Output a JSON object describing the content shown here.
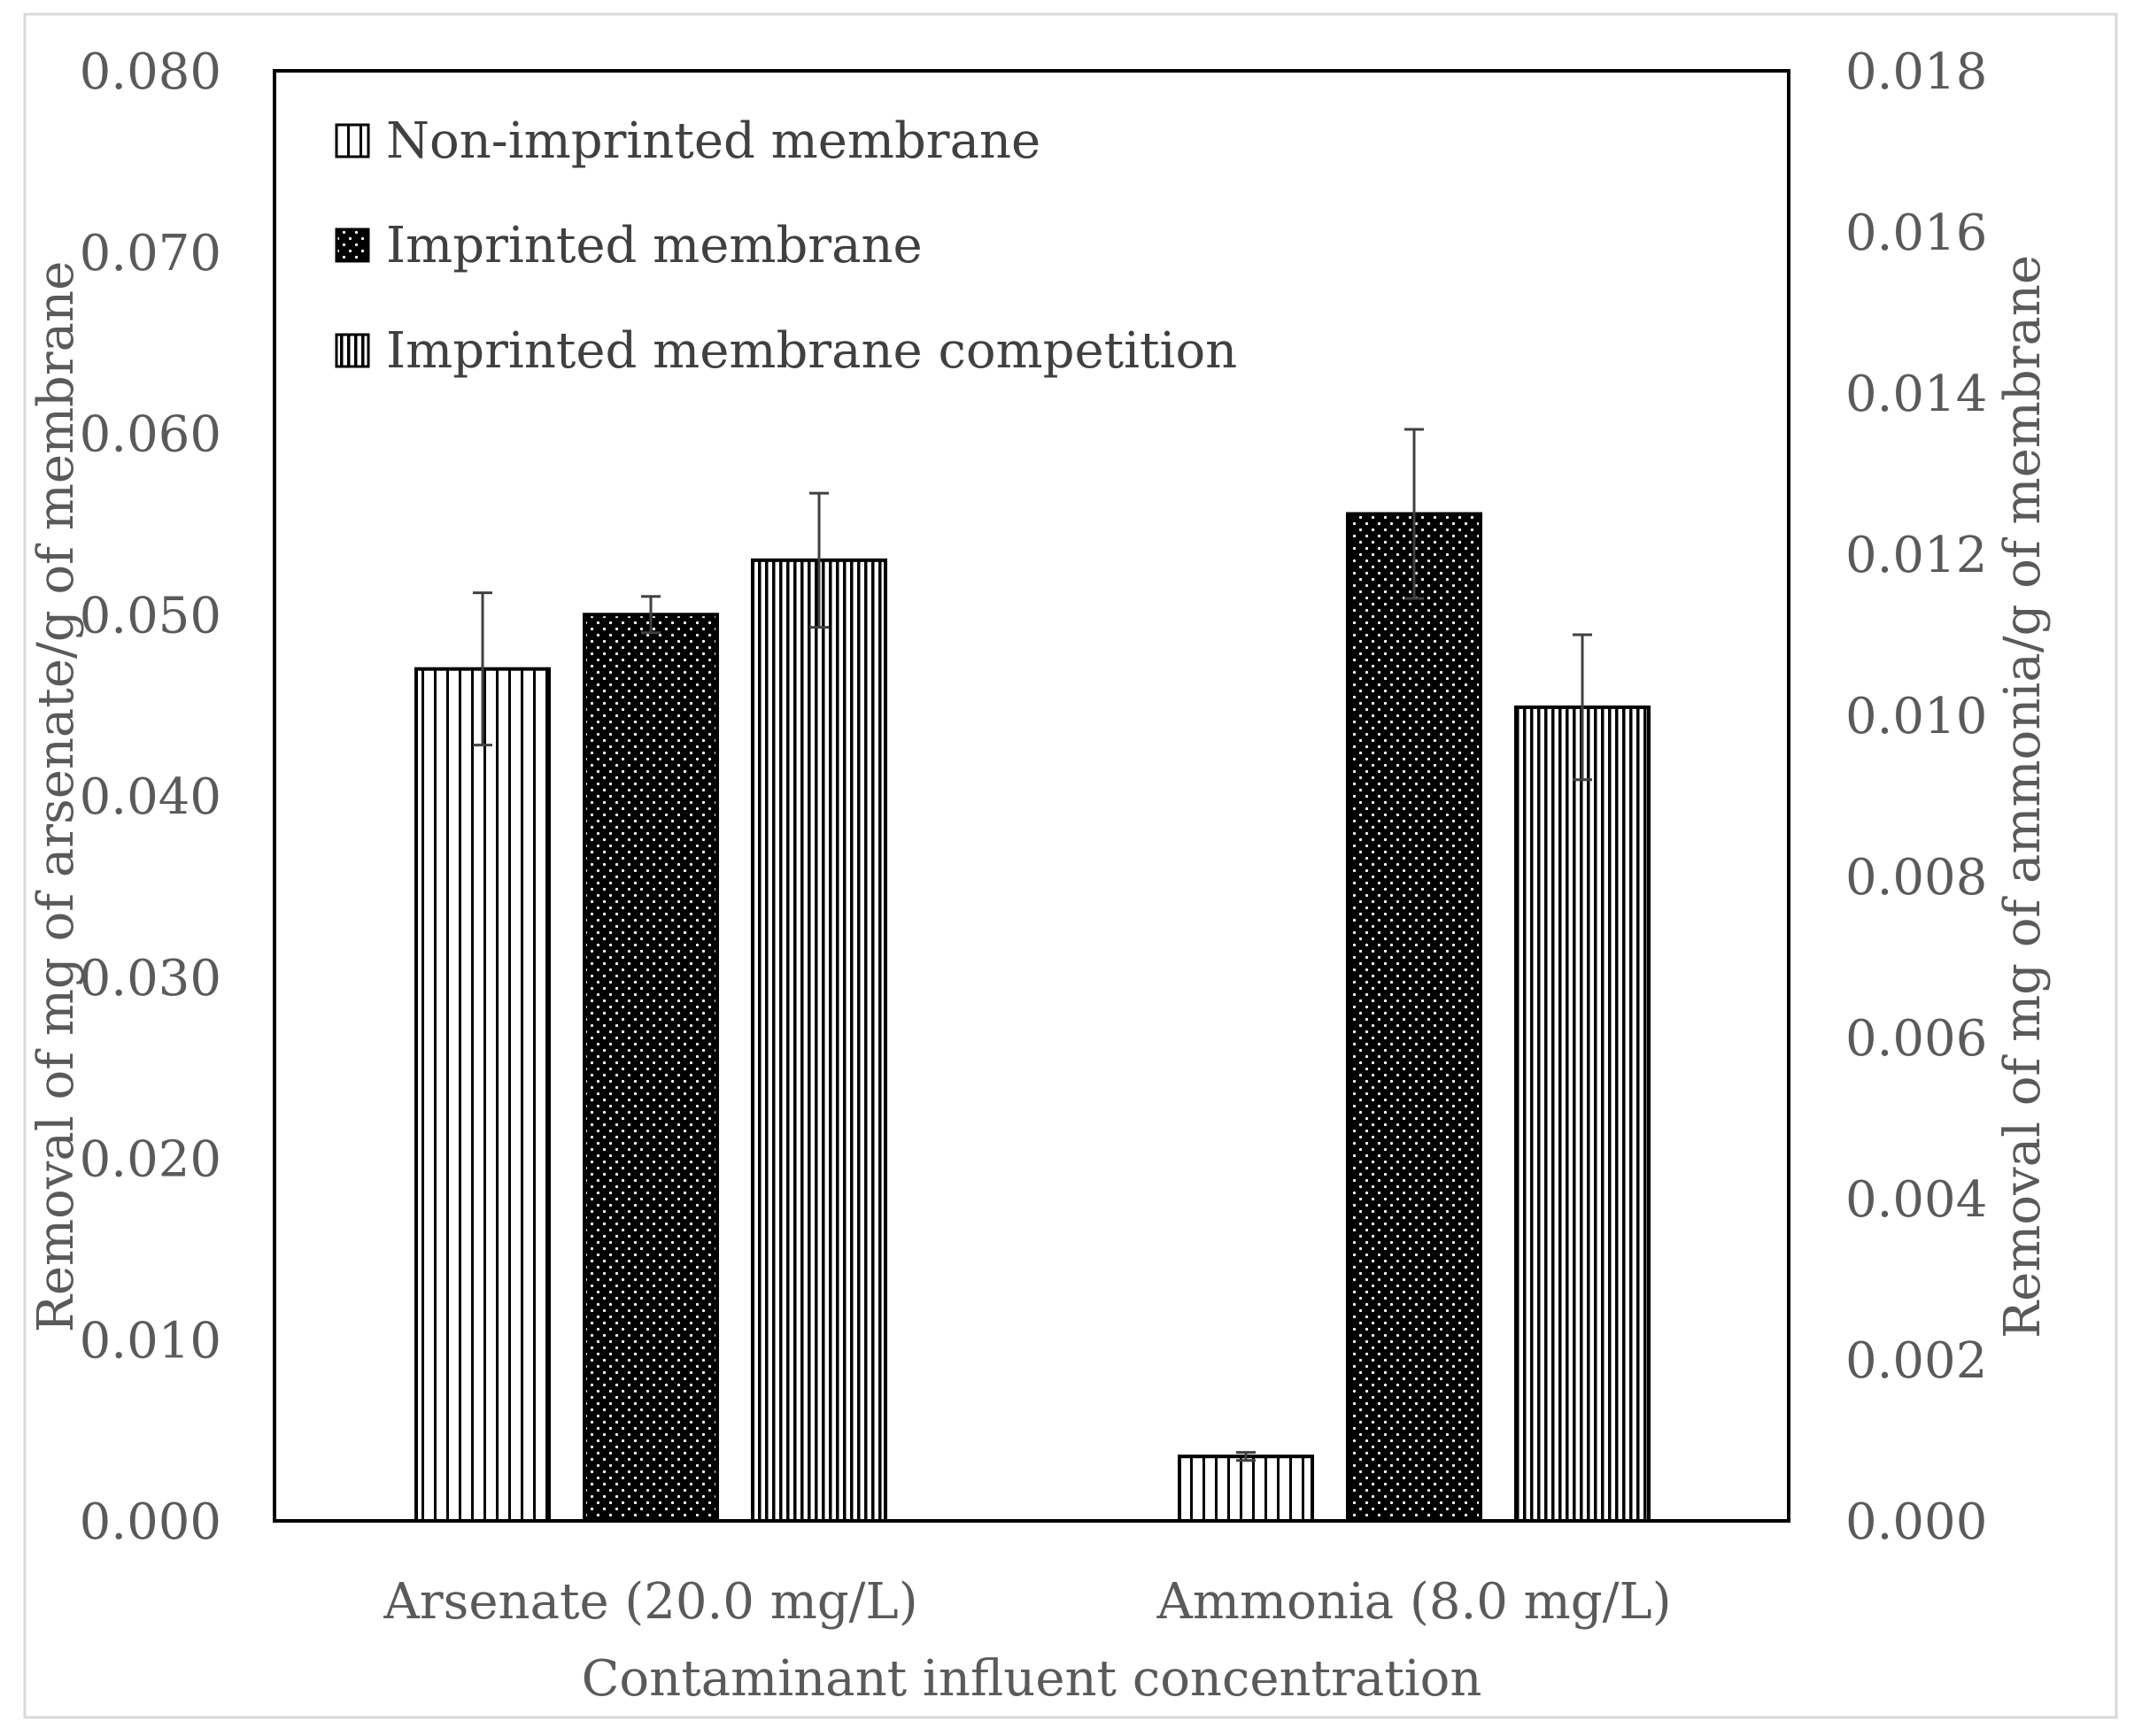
{
  "chart_data": {
    "type": "bar",
    "xlabel": "Contaminant influent concentration",
    "ylabel_left": "Removal of mg of arsenate/g of membrane",
    "ylabel_right": "Removal of mg of ammonia/g of membrane",
    "categories": [
      "Arsenate (20.0 mg/L)",
      "Ammonia (8.0 mg/L)"
    ],
    "category_axis": [
      "left",
      "right"
    ],
    "ylim_left": [
      0,
      0.08
    ],
    "ylim_right": [
      0,
      0.018
    ],
    "yticks_left": [
      "0.000",
      "0.010",
      "0.020",
      "0.030",
      "0.040",
      "0.050",
      "0.060",
      "0.070",
      "0.080"
    ],
    "yticks_right": [
      "0.000",
      "0.002",
      "0.004",
      "0.006",
      "0.008",
      "0.010",
      "0.012",
      "0.014",
      "0.016",
      "0.018"
    ],
    "grid": false,
    "legend_position": "top-left",
    "series": [
      {
        "name": "Non-imprinted membrane",
        "pattern": "vertical-lines-sparse",
        "values": [
          0.047,
          0.0008
        ],
        "errors": [
          0.0042,
          5e-05
        ]
      },
      {
        "name": "Imprinted membrane",
        "pattern": "dots-on-black",
        "values": [
          0.05,
          0.0125
        ],
        "errors": [
          0.001,
          0.00105
        ]
      },
      {
        "name": "Imprinted membrane competition",
        "pattern": "vertical-lines-dense",
        "values": [
          0.053,
          0.0101
        ],
        "errors": [
          0.0037,
          0.0009
        ]
      }
    ],
    "colors": {
      "axis": "#000000",
      "text": "#5a5a5a",
      "bar_outline": "#000000",
      "error_bar": "#404040"
    }
  }
}
